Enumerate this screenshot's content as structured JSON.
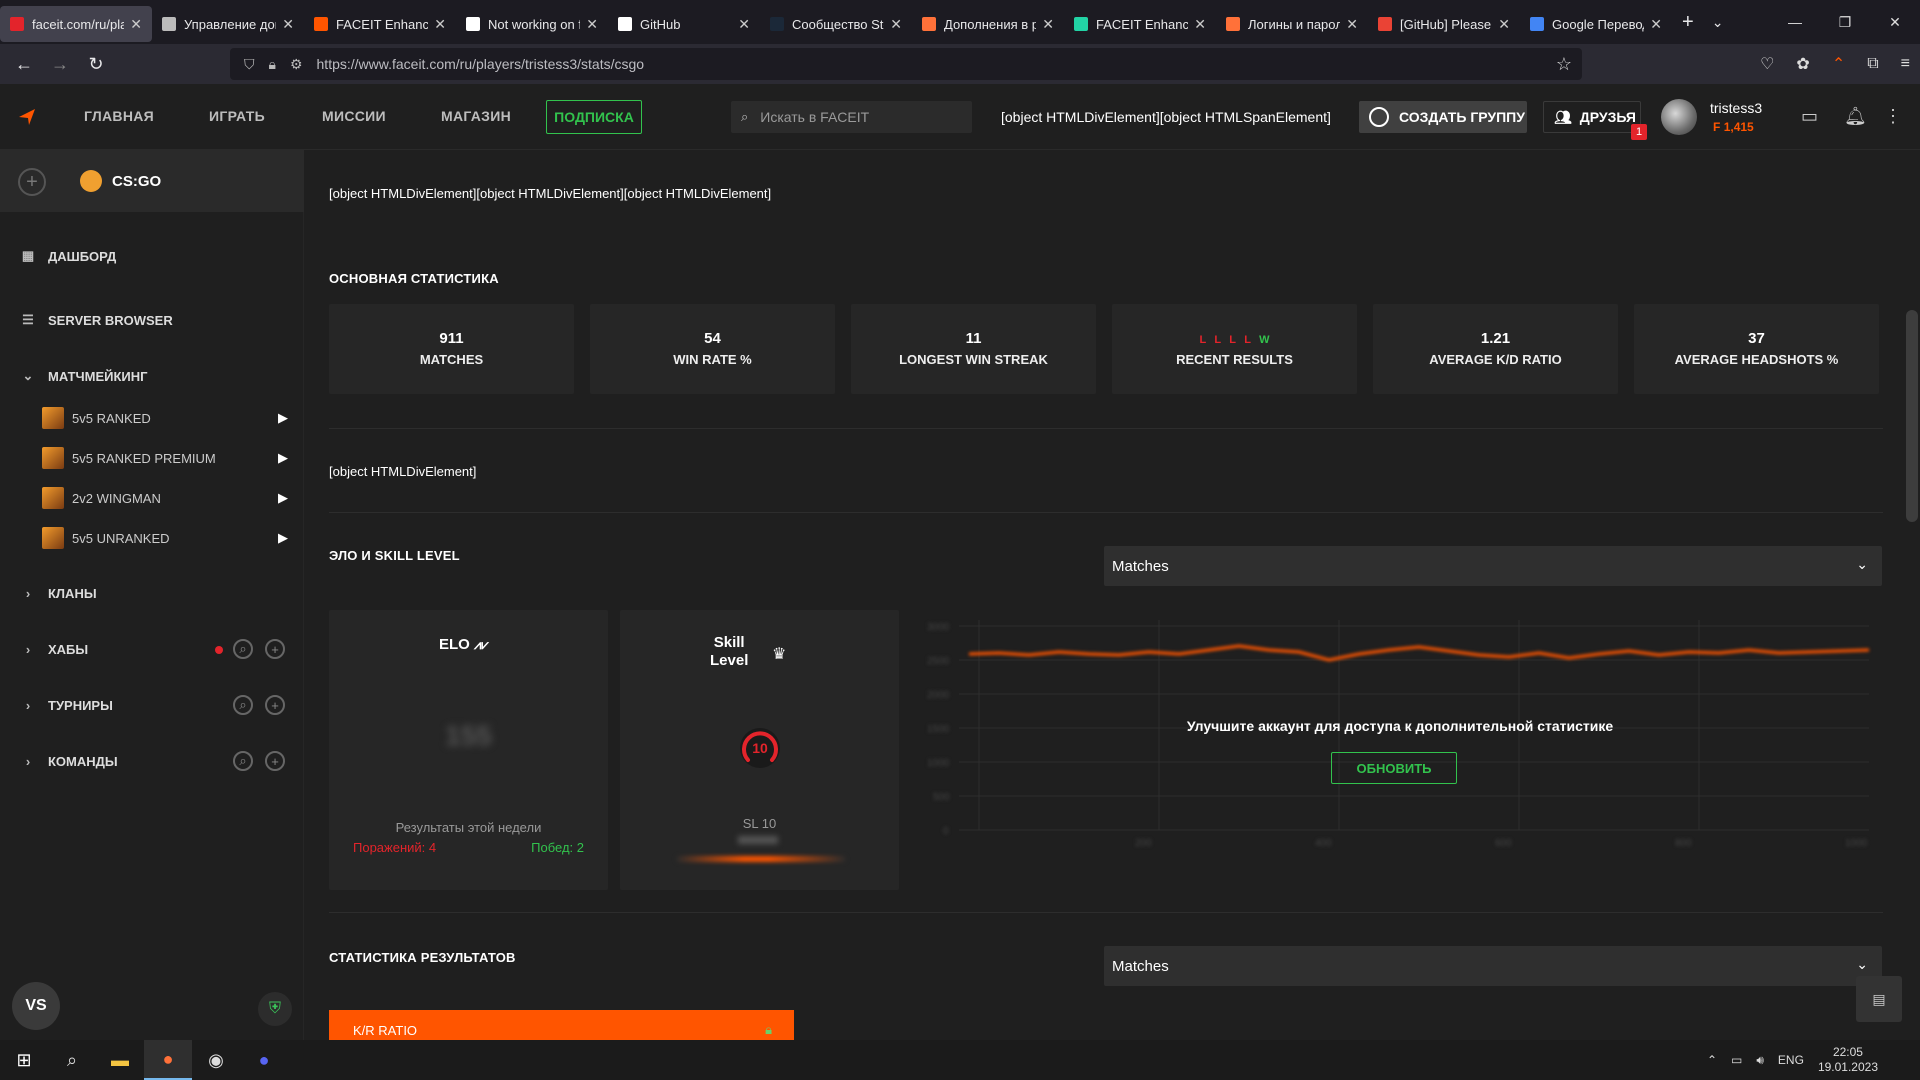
{
  "browser": {
    "tabs": [
      {
        "title": "faceit.com/ru/pla",
        "color": "#e3242b",
        "active": true
      },
      {
        "title": "Управление доп",
        "color": "#bbbbbb"
      },
      {
        "title": "FACEIT Enhancer",
        "color": "#ff5500"
      },
      {
        "title": "Not working on f",
        "color": "#ffffff"
      },
      {
        "title": "GitHub",
        "color": "#ffffff"
      },
      {
        "title": "Сообщество Stea",
        "color": "#1b2838"
      },
      {
        "title": "Дополнения в ра",
        "color": "#ff7139"
      },
      {
        "title": "FACEIT Enhancer",
        "color": "#22d3a5"
      },
      {
        "title": "Логины и пароли",
        "color": "#ff7139"
      },
      {
        "title": "[GitHub] Please ve",
        "color": "#ea4335"
      },
      {
        "title": "Google Перевод",
        "color": "#4285f4"
      }
    ],
    "url": "https://www.faceit.com/ru/players/tristess3/stats/csgo"
  },
  "header": {
    "nav": [
      "ГЛАВНАЯ",
      "ИГРАТЬ",
      "МИССИИ",
      "МАГАЗИН"
    ],
    "subscribe": "ПОДПИСКА",
    "search_placeholder": "Искать в FACEIT",
    "object_text": "[object HTMLDivElement][object HTMLSpanElement]",
    "create_group": "СОЗДАТЬ ГРУППУ",
    "friends": "ДРУЗЬЯ",
    "friends_badge": "1",
    "username": "tristess3",
    "points": "1,415"
  },
  "sidebar": {
    "game": "CS:GO",
    "dashboard": "ДАШБОРД",
    "server_browser": "SERVER BROWSER",
    "matchmaking": "МАТЧМЕЙКИНГ",
    "modes": [
      "5v5 RANKED",
      "5v5 RANKED PREMIUM",
      "2v2 WINGMAN",
      "5v5 UNRANKED"
    ],
    "clans": "КЛАНЫ",
    "hubs": "ХАБЫ",
    "tournaments": "ТУРНИРЫ",
    "teams": "КОМАНДЫ",
    "user_initials": "VS"
  },
  "main": {
    "top_object_text": "[object HTMLDivElement][object HTMLDivElement][object HTMLDivElement]",
    "main_stats_title": "ОСНОВНАЯ СТАТИСТИКА",
    "stats": [
      {
        "value": "911",
        "label": "MATCHES"
      },
      {
        "value": "54",
        "label": "WIN RATE %"
      },
      {
        "value": "11",
        "label": "LONGEST WIN STREAK"
      },
      {
        "value": "L L L L W",
        "label": "RECENT RESULTS"
      },
      {
        "value": "1.21",
        "label": "AVERAGE K/D RATIO"
      },
      {
        "value": "37",
        "label": "AVERAGE HEADSHOTS %"
      }
    ],
    "recent_results": [
      "L",
      "L",
      "L",
      "L",
      "W"
    ],
    "mid_object_text": "[object HTMLDivElement]",
    "elo_section_title": "ЭЛО И SKILL LEVEL",
    "dropdown_value": "Matches",
    "elo_title": "ELO",
    "elo_value": "155",
    "week_results": "Результаты этой недели",
    "losses": "Поражений: 4",
    "wins": "Побед: 2",
    "skill_title_1": "Skill",
    "skill_title_2": "Level",
    "skill_level": "10",
    "sl_text": "SL 10",
    "upgrade_text": "Улучшите аккаунт для доступа к дополнительной статистике",
    "upgrade_button": "ОБНОВИТЬ",
    "results_stats_title": "СТАТИСТИКА РЕЗУЛЬТАТОВ",
    "kr_ratio": "K/R RATIO"
  },
  "taskbar": {
    "lang": "ENG",
    "time": "22:05",
    "date": "19.01.2023"
  }
}
